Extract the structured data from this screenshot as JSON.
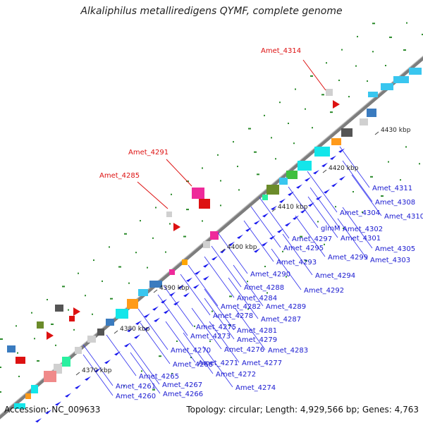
{
  "title": "Alkaliphilus metalliredigens QYMF, complete genome",
  "footer": {
    "accession": "Accession: NC_009633",
    "summary": "Topology: circular; Length: 4,929,566 bp; Genes: 4,763"
  },
  "colors": {
    "backbone": "#8a8a8a",
    "gene_arrow": "#1a1aee",
    "blue_label": "#1a1ad0",
    "red_label": "#dd1111",
    "gc_dots": "#2a8a2a"
  },
  "scale_labels": [
    "4370 kbp",
    "4380 kbp",
    "4390 kbp",
    "4400 kbp",
    "4410 kbp",
    "4420 kbp",
    "4430 kbp"
  ],
  "red_labels": [
    "Amet_4314",
    "Amet_4291",
    "Amet_4285"
  ],
  "blue_labels": [
    "Amet_4311",
    "Amet_4308",
    "Amet_4310",
    "Amet_4304",
    "Amet_4302",
    "Amet_4301",
    "Amet_4305",
    "Amet_4303",
    "Amet_4299",
    "glmM",
    "Amet_4297",
    "Amet_4295",
    "Amet_4293",
    "Amet_4294",
    "Amet_4290",
    "Amet_4292",
    "Amet_4288",
    "Amet_4284",
    "Amet_4289",
    "Amet_4282",
    "Amet_4287",
    "Amet_4278",
    "Amet_4281",
    "Amet_4275",
    "Amet_4279",
    "Amet_4273",
    "Amet_4283",
    "Amet_4276",
    "Amet_4270",
    "Amet_4277",
    "Amet_4271",
    "Amet_4268",
    "Amet_4272",
    "Amet_4265",
    "Amet_4274",
    "Amet_4267",
    "Amet_4261",
    "Amet_4266",
    "Amet_4260"
  ]
}
